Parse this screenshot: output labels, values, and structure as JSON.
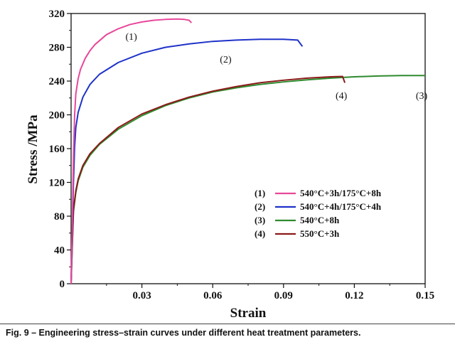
{
  "chart_data": {
    "type": "line",
    "xlabel": "Strain",
    "ylabel": "Stress /MPa",
    "xlim": [
      0,
      0.15
    ],
    "ylim": [
      0,
      320
    ],
    "xticks": [
      0.03,
      0.06,
      0.09,
      0.12,
      0.15
    ],
    "xtick_labels": [
      "0.03",
      "0.06",
      "0.09",
      "0.12",
      "0.15"
    ],
    "yticks": [
      0,
      40,
      80,
      120,
      160,
      200,
      240,
      280,
      320
    ],
    "ytick_labels": [
      "0",
      "40",
      "80",
      "120",
      "160",
      "200",
      "240",
      "280",
      "320"
    ],
    "legend_position": "lower-right",
    "series": [
      {
        "id": "s1",
        "marker": "(1)",
        "name": "540°C+3h/175°C+8h",
        "color": "#e8479a",
        "points": [
          [
            0,
            0
          ],
          [
            0.0005,
            70
          ],
          [
            0.001,
            150
          ],
          [
            0.0015,
            200
          ],
          [
            0.002,
            225
          ],
          [
            0.003,
            243
          ],
          [
            0.004,
            254
          ],
          [
            0.006,
            267
          ],
          [
            0.008,
            276
          ],
          [
            0.01,
            283
          ],
          [
            0.015,
            295
          ],
          [
            0.02,
            302
          ],
          [
            0.025,
            307
          ],
          [
            0.03,
            310
          ],
          [
            0.035,
            312
          ],
          [
            0.04,
            313
          ],
          [
            0.045,
            313.5
          ],
          [
            0.048,
            313
          ],
          [
            0.05,
            312
          ],
          [
            0.051,
            309
          ]
        ]
      },
      {
        "id": "s2",
        "marker": "(2)",
        "name": "540°C+4h/175°C+4h",
        "color": "#1f32c9",
        "points": [
          [
            0,
            0
          ],
          [
            0.0005,
            60
          ],
          [
            0.001,
            120
          ],
          [
            0.0015,
            163
          ],
          [
            0.002,
            185
          ],
          [
            0.003,
            203
          ],
          [
            0.005,
            221
          ],
          [
            0.008,
            236
          ],
          [
            0.012,
            248
          ],
          [
            0.02,
            262
          ],
          [
            0.03,
            273
          ],
          [
            0.04,
            280
          ],
          [
            0.05,
            284
          ],
          [
            0.06,
            287
          ],
          [
            0.07,
            288.5
          ],
          [
            0.08,
            289.5
          ],
          [
            0.09,
            289.5
          ],
          [
            0.096,
            288.5
          ],
          [
            0.098,
            281
          ]
        ]
      },
      {
        "id": "s3",
        "marker": "(3)",
        "name": "540°C+8h",
        "color": "#2e8b2e",
        "points": [
          [
            0,
            0
          ],
          [
            0.0005,
            45
          ],
          [
            0.001,
            85
          ],
          [
            0.002,
            108
          ],
          [
            0.003,
            122
          ],
          [
            0.005,
            138
          ],
          [
            0.008,
            152
          ],
          [
            0.012,
            165
          ],
          [
            0.02,
            183
          ],
          [
            0.03,
            199
          ],
          [
            0.04,
            211
          ],
          [
            0.05,
            220
          ],
          [
            0.06,
            227
          ],
          [
            0.07,
            232
          ],
          [
            0.08,
            236
          ],
          [
            0.09,
            239
          ],
          [
            0.1,
            241.5
          ],
          [
            0.11,
            243.5
          ],
          [
            0.12,
            245
          ],
          [
            0.13,
            246
          ],
          [
            0.14,
            246.5
          ],
          [
            0.15,
            246.5
          ]
        ]
      },
      {
        "id": "s4",
        "marker": "(4)",
        "name": "550°C+3h",
        "color": "#8b1a1a",
        "points": [
          [
            0,
            0
          ],
          [
            0.0005,
            48
          ],
          [
            0.001,
            88
          ],
          [
            0.002,
            110
          ],
          [
            0.003,
            124
          ],
          [
            0.005,
            140
          ],
          [
            0.008,
            154
          ],
          [
            0.012,
            166
          ],
          [
            0.02,
            185
          ],
          [
            0.03,
            201
          ],
          [
            0.04,
            212
          ],
          [
            0.05,
            221
          ],
          [
            0.06,
            228
          ],
          [
            0.07,
            233.5
          ],
          [
            0.08,
            238
          ],
          [
            0.09,
            241
          ],
          [
            0.1,
            243.5
          ],
          [
            0.11,
            245
          ],
          [
            0.115,
            245.5
          ],
          [
            0.116,
            238
          ]
        ]
      }
    ],
    "annotations": [
      {
        "label": "(1)",
        "x": 0.0255,
        "y": 289
      },
      {
        "label": "(2)",
        "x": 0.0655,
        "y": 262
      },
      {
        "label": "(4)",
        "x": 0.1145,
        "y": 219
      },
      {
        "label": "(3)",
        "x": 0.1485,
        "y": 219
      }
    ]
  },
  "caption": "Fig. 9 – Engineering stress–strain curves under different heat treatment parameters."
}
